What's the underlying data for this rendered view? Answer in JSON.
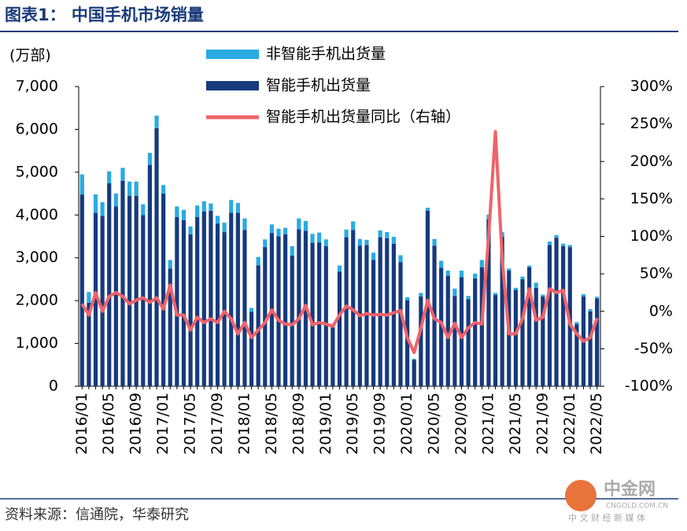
{
  "chart_data": {
    "type": "bar-line",
    "title": "图表1：  中国手机市场销量",
    "y_label": "(万部)",
    "source": "资料来源：信通院，华泰研究",
    "watermark": [
      "中金网",
      "CNGOLD.COM.CN",
      "中 文 财 经 新 媒 体"
    ],
    "categories": [
      "2016/01",
      null,
      null,
      null,
      "2016/05",
      null,
      null,
      null,
      "2016/09",
      null,
      null,
      null,
      "2017/01",
      null,
      null,
      null,
      "2017/05",
      null,
      null,
      null,
      "2017/09",
      null,
      null,
      null,
      "2018/01",
      null,
      null,
      null,
      "2018/05",
      null,
      null,
      null,
      "2018/09",
      null,
      null,
      null,
      "2019/01",
      null,
      null,
      null,
      "2019/05",
      null,
      null,
      null,
      "2019/09",
      null,
      null,
      null,
      "2020/01",
      null,
      null,
      null,
      "2020/05",
      null,
      null,
      null,
      "2020/09",
      null,
      null,
      null,
      "2021/01",
      null,
      null,
      null,
      "2021/05",
      null,
      null,
      null,
      "2021/09",
      null,
      null,
      null,
      "2022/01",
      null,
      null,
      null,
      "2022/05"
    ],
    "series": [
      {
        "name": "非智能手机出货量",
        "kind": "bar",
        "color": "#29abe2",
        "values": [
          470,
          250,
          430,
          320,
          280,
          300,
          300,
          330,
          330,
          250,
          280,
          290,
          200,
          200,
          250,
          240,
          180,
          270,
          240,
          170,
          180,
          220,
          300,
          230,
          270,
          90,
          200,
          180,
          200,
          180,
          150,
          220,
          250,
          230,
          210,
          230,
          160,
          80,
          140,
          180,
          200,
          160,
          120,
          170,
          160,
          140,
          160,
          160,
          70,
          20,
          80,
          70,
          160,
          160,
          120,
          170,
          150,
          80,
          110,
          170,
          110,
          50,
          110,
          50,
          50,
          60,
          40,
          120,
          40,
          80,
          60,
          60,
          50,
          50,
          50,
          50,
          40
        ]
      },
      {
        "name": "智能手机出货量",
        "kind": "bar",
        "color": "#163a7c",
        "values": [
          4480,
          1950,
          4050,
          3980,
          4740,
          4200,
          4800,
          4450,
          4450,
          4000,
          5170,
          6030,
          4500,
          2750,
          3950,
          3880,
          3550,
          3950,
          4080,
          4100,
          3800,
          3600,
          4050,
          4050,
          3650,
          1740,
          2820,
          3250,
          3580,
          3500,
          3550,
          3050,
          3670,
          3630,
          3350,
          3360,
          3270,
          1380,
          2680,
          3480,
          3650,
          3280,
          3300,
          2950,
          3480,
          3460,
          3330,
          2900,
          2010,
          620,
          2100,
          4100,
          3280,
          2770,
          2580,
          2110,
          2550,
          2030,
          2520,
          2780,
          3900,
          2130,
          3490,
          2700,
          2250,
          2500,
          2780,
          2300,
          2100,
          3300,
          3470,
          3270,
          3250,
          1450,
          2100,
          1750,
          2050
        ]
      },
      {
        "name": "智能手机出货量同比（右轴）",
        "kind": "line",
        "axis": "y2",
        "color": "#f0636a",
        "values": [
          10,
          -5,
          25,
          0,
          20,
          25,
          20,
          10,
          15,
          18,
          12,
          18,
          3,
          35,
          -5,
          -5,
          -25,
          -8,
          -15,
          -10,
          -15,
          0,
          -10,
          -30,
          -15,
          -35,
          -25,
          -15,
          2,
          -12,
          -17,
          -18,
          -10,
          8,
          -18,
          -15,
          -17,
          -20,
          -5,
          7,
          2,
          -6,
          -3,
          -5,
          -4,
          -5,
          -2,
          1,
          -35,
          -55,
          -23,
          15,
          -10,
          -15,
          -35,
          -16,
          -35,
          -22,
          -15,
          -17,
          100,
          240,
          70,
          -30,
          -30,
          -10,
          30,
          -12,
          -8,
          30,
          25,
          28,
          -17,
          -30,
          -40,
          -35,
          -9
        ]
      }
    ],
    "ylim": [
      0,
      7000
    ],
    "yticks": [
      0,
      {
        "value": 1000,
        "label": "1,000"
      },
      {
        "value": 2000,
        "label": "2,000"
      },
      {
        "value": 3000,
        "label": "3,000"
      },
      {
        "value": 4000,
        "label": "4,000"
      },
      {
        "value": 5000,
        "label": "5,000"
      },
      {
        "value": 6000,
        "label": "6,000"
      },
      {
        "value": 7000,
        "label": "7,000"
      }
    ],
    "y2lim": [
      -100,
      300
    ],
    "y2ticks": [
      {
        "value": -100,
        "label": "-100%"
      },
      {
        "value": -50,
        "label": "-50%"
      },
      {
        "value": 0,
        "label": "0%"
      },
      {
        "value": 50,
        "label": "50%"
      },
      {
        "value": 100,
        "label": "100%"
      },
      {
        "value": 150,
        "label": "150%"
      },
      {
        "value": 200,
        "label": "200%"
      },
      {
        "value": 250,
        "label": "250%"
      },
      {
        "value": 300,
        "label": "300%"
      }
    ]
  }
}
